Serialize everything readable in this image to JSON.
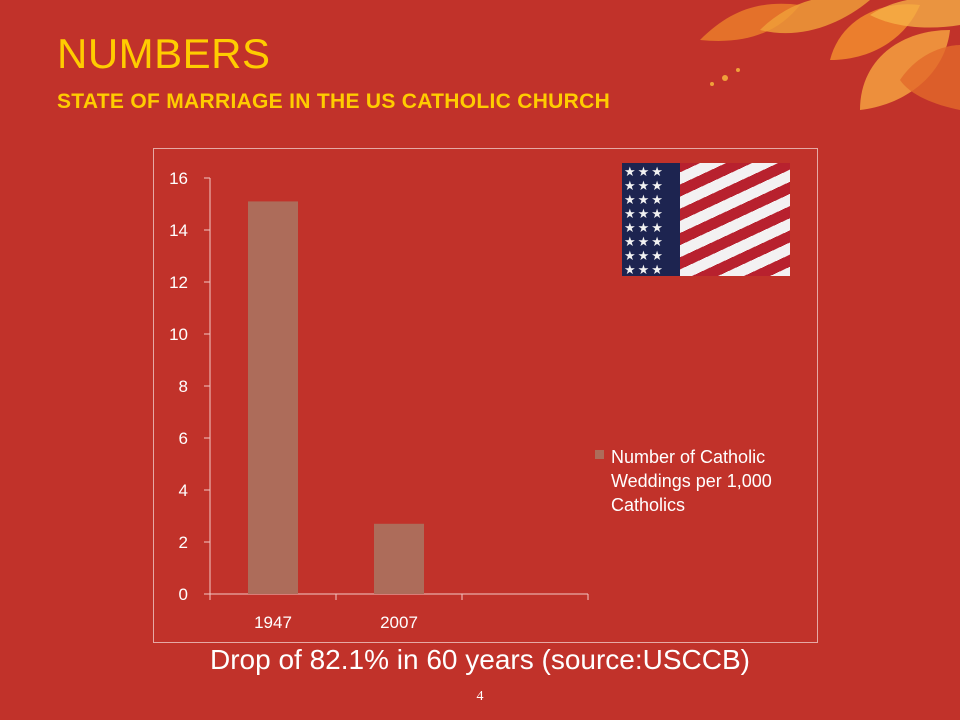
{
  "slide": {
    "title": "NUMBERS",
    "subtitle": "STATE OF MARRIAGE IN THE US CATHOLIC CHURCH",
    "caption": "Drop of 82.1% in 60 years (source:USCCB)",
    "page_number": "4",
    "flag_image": "us-flag-image",
    "decoration": "autumn-leaves-icon"
  },
  "colors": {
    "background": "#c1322a",
    "title": "#ffcc00",
    "bar": "#ad6c5a",
    "text": "#ffffff"
  },
  "chart_data": {
    "type": "bar",
    "categories": [
      "1947",
      "2007"
    ],
    "series": [
      {
        "name": "Number of Catholic Weddings per 1,000 Catholics",
        "values": [
          15.1,
          2.7
        ]
      }
    ],
    "ylim": [
      0,
      16
    ],
    "yticks": [
      "0",
      "2",
      "4",
      "6",
      "8",
      "10",
      "12",
      "14",
      "16"
    ],
    "legend_position": "right",
    "grid": false
  }
}
